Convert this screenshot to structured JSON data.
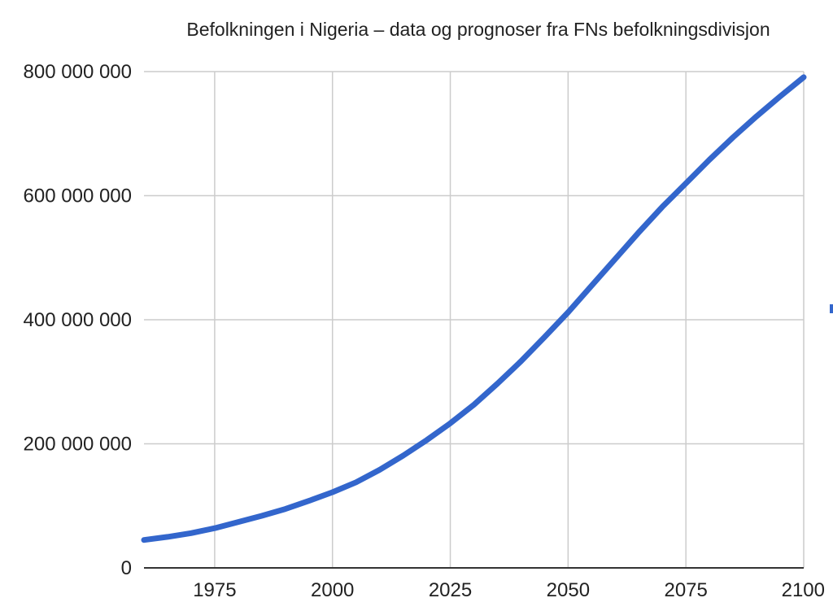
{
  "colors": {
    "series": "#3366cc"
  },
  "chart_data": {
    "type": "line",
    "title": "Befolkningen i Nigeria – data og prognoser fra FNs befolkningsdivisjon",
    "xlabel": "",
    "ylabel": "",
    "xlim": [
      1960,
      2100
    ],
    "ylim": [
      0,
      800000000
    ],
    "x_ticks": [
      "1975",
      "2000",
      "2025",
      "2050",
      "2075",
      "2100"
    ],
    "x_tick_values": [
      1975,
      2000,
      2025,
      2050,
      2075,
      2100
    ],
    "y_ticks": [
      "0",
      "200 000 000",
      "400 000 000",
      "600 000 000",
      "800 000 000"
    ],
    "y_tick_values": [
      0,
      200000000,
      400000000,
      600000000,
      800000000
    ],
    "grid": true,
    "legend": "none",
    "series": [
      {
        "x": [
          1960,
          1965,
          1970,
          1975,
          1980,
          1985,
          1990,
          1995,
          2000,
          2005,
          2010,
          2015,
          2020,
          2025,
          2030,
          2035,
          2040,
          2045,
          2050,
          2055,
          2060,
          2065,
          2070,
          2075,
          2080,
          2085,
          2090,
          2095,
          2100
        ],
        "values": [
          45000000,
          50000000,
          56000000,
          64000000,
          74000000,
          84000000,
          95000000,
          108000000,
          122000000,
          138000000,
          158000000,
          181000000,
          206000000,
          233000000,
          263000000,
          297000000,
          333000000,
          372000000,
          412000000,
          455000000,
          498000000,
          541000000,
          582000000,
          620000000,
          658000000,
          694000000,
          728000000,
          760000000,
          791000000
        ]
      }
    ]
  }
}
